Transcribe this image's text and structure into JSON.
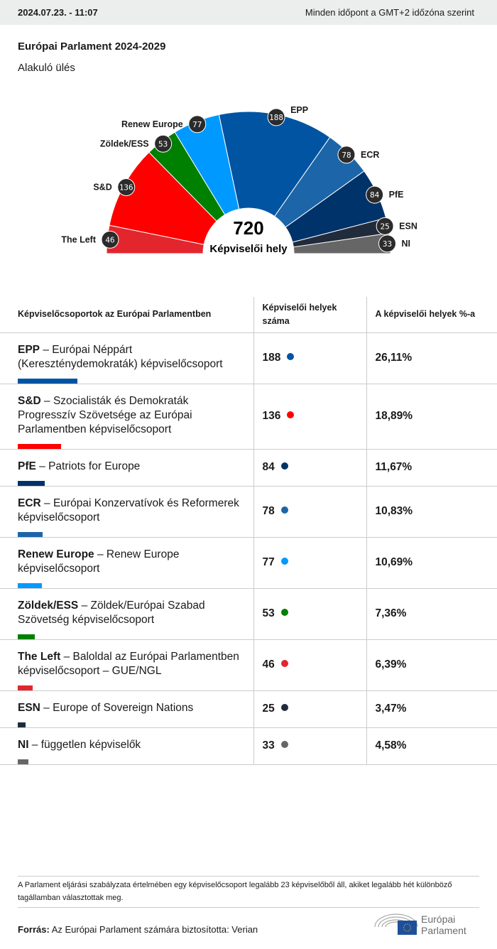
{
  "header": {
    "datetime": "2024.07.23. - 11:07",
    "timezone_note": "Minden időpont a GMT+2 időzóna szerint"
  },
  "title": "Európai Parlament 2024-2029",
  "subtitle": "Alakuló ülés",
  "chart_data": {
    "type": "hemicycle",
    "total": 720,
    "total_label": "Képviselői hely",
    "series": [
      {
        "name": "The Left",
        "value": 46,
        "color": "#e3262d"
      },
      {
        "name": "S&D",
        "value": 136,
        "color": "#ff0000"
      },
      {
        "name": "Zöldek/ESS",
        "value": 53,
        "color": "#008000"
      },
      {
        "name": "Renew Europe",
        "value": 77,
        "color": "#0099ff"
      },
      {
        "name": "EPP",
        "value": 188,
        "color": "#0054a2"
      },
      {
        "name": "ECR",
        "value": 78,
        "color": "#1c65a8"
      },
      {
        "name": "PfE",
        "value": 84,
        "color": "#00336a"
      },
      {
        "name": "ESN",
        "value": 25,
        "color": "#202c3b"
      },
      {
        "name": "NI",
        "value": 33,
        "color": "#666666"
      }
    ]
  },
  "table": {
    "headers": [
      "Képviselőcsoportok az Európai Parlamentben",
      "Képviselői helyek száma",
      "A képviselői helyek %-a"
    ],
    "rows": [
      {
        "abbr": "EPP",
        "name": " – Európai Néppárt (Kereszténydemokraták) képviselőcsoport",
        "seats": "188",
        "pct": "26,11%",
        "color": "#0054a2",
        "value": 188
      },
      {
        "abbr": "S&D",
        "name": " – Szocialisták és Demokraták Progresszív Szövetsége az Európai Parlamentben képviselőcsoport",
        "seats": "136",
        "pct": "18,89%",
        "color": "#ff0000",
        "value": 136
      },
      {
        "abbr": "PfE",
        "name": " – Patriots for Europe",
        "seats": "84",
        "pct": "11,67%",
        "color": "#00336a",
        "value": 84
      },
      {
        "abbr": "ECR",
        "name": " – Európai Konzervatívok és Reformerek képviselőcsoport",
        "seats": "78",
        "pct": "10,83%",
        "color": "#1c65a8",
        "value": 78
      },
      {
        "abbr": "Renew Europe",
        "name": " – Renew Europe képviselőcsoport",
        "seats": "77",
        "pct": "10,69%",
        "color": "#0099ff",
        "value": 77
      },
      {
        "abbr": "Zöldek/ESS",
        "name": " – Zöldek/Európai Szabad Szövetség képviselőcsoport",
        "seats": "53",
        "pct": "7,36%",
        "color": "#008000",
        "value": 53
      },
      {
        "abbr": "The Left",
        "name": " – Baloldal az Európai Parlamentben képviselőcsoport – GUE/NGL",
        "seats": "46",
        "pct": "6,39%",
        "color": "#e3262d",
        "value": 46
      },
      {
        "abbr": "ESN",
        "name": " – Europe of Sovereign Nations",
        "seats": "25",
        "pct": "3,47%",
        "color": "#202c3b",
        "value": 25
      },
      {
        "abbr": "NI",
        "name": " – független képviselők",
        "seats": "33",
        "pct": "4,58%",
        "color": "#666666",
        "value": 33
      }
    ]
  },
  "note": "A Parlament eljárási szabályzata értelmében egy képviselőcsoport legalább 23 képviselőből áll, akiket legalább hét különböző tagállamban választottak meg.",
  "source": {
    "label": "Forrás:",
    "text": " Az Európai Parlament számára biztosította: Verian"
  },
  "logo": {
    "line1": "Európai",
    "line2": "Parlament"
  }
}
